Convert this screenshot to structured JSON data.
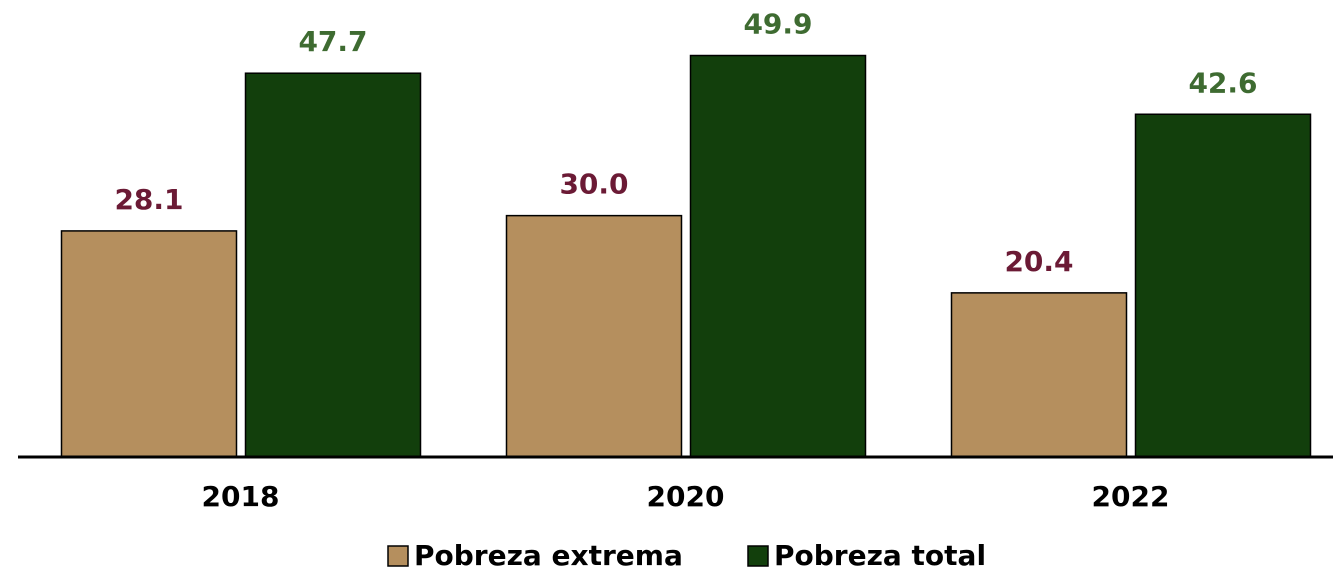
{
  "chart_data": {
    "type": "bar",
    "categories": [
      "2018",
      "2020",
      "2022"
    ],
    "series": [
      {
        "name": "Pobreza extrema",
        "color": "#b58f5e",
        "label_color": "#6b1a35",
        "values": [
          28.1,
          30.0,
          20.4
        ],
        "value_labels": [
          "28.1",
          "30.0",
          "20.4"
        ]
      },
      {
        "name": "Pobreza total",
        "color": "#123f0c",
        "label_color": "#3e6b31",
        "values": [
          47.7,
          49.9,
          42.6
        ],
        "value_labels": [
          "47.7",
          "49.9",
          "42.6"
        ]
      }
    ],
    "ylim": [
      0,
      56.8
    ],
    "legend": "bottom"
  }
}
